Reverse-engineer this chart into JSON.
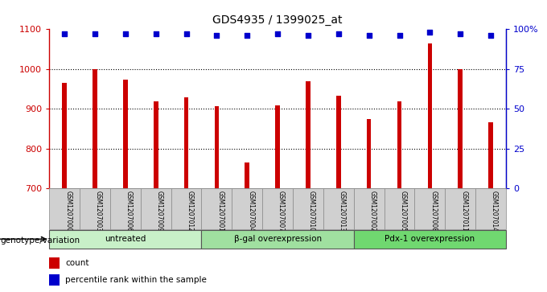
{
  "title": "GDS4935 / 1399025_at",
  "samples": [
    "GSM1207000",
    "GSM1207003",
    "GSM1207006",
    "GSM1207009",
    "GSM1207012",
    "GSM1207001",
    "GSM1207004",
    "GSM1207007",
    "GSM1207010",
    "GSM1207013",
    "GSM1207002",
    "GSM1207005",
    "GSM1207008",
    "GSM1207011",
    "GSM1207014"
  ],
  "counts": [
    965,
    1000,
    973,
    919,
    928,
    907,
    764,
    908,
    969,
    933,
    875,
    919,
    1065,
    1000,
    867
  ],
  "percentiles": [
    97,
    97,
    97,
    97,
    97,
    96,
    96,
    97,
    96,
    97,
    96,
    96,
    98,
    97,
    96
  ],
  "groups": [
    {
      "label": "untreated",
      "start": 0,
      "end": 5,
      "color": "#c8f0c8"
    },
    {
      "label": "β-gal overexpression",
      "start": 5,
      "end": 10,
      "color": "#a0e0a0"
    },
    {
      "label": "Pdx-1 overexpression",
      "start": 10,
      "end": 15,
      "color": "#70d870"
    }
  ],
  "bar_color": "#cc0000",
  "dot_color": "#0000cc",
  "ylim_left": [
    700,
    1100
  ],
  "ylim_right": [
    0,
    100
  ],
  "yticks_left": [
    700,
    800,
    900,
    1000,
    1100
  ],
  "yticks_right": [
    0,
    25,
    50,
    75,
    100
  ],
  "ytick_labels_right": [
    "0",
    "25",
    "50",
    "75",
    "100%"
  ],
  "grid_values": [
    800,
    900,
    1000
  ],
  "bar_width": 0.15,
  "background_color": "#ffffff",
  "sample_box_color": "#d0d0d0",
  "sample_box_edge": "#888888",
  "genotype_label": "genotype/variation",
  "legend_count": "count",
  "legend_percentile": "percentile rank within the sample"
}
